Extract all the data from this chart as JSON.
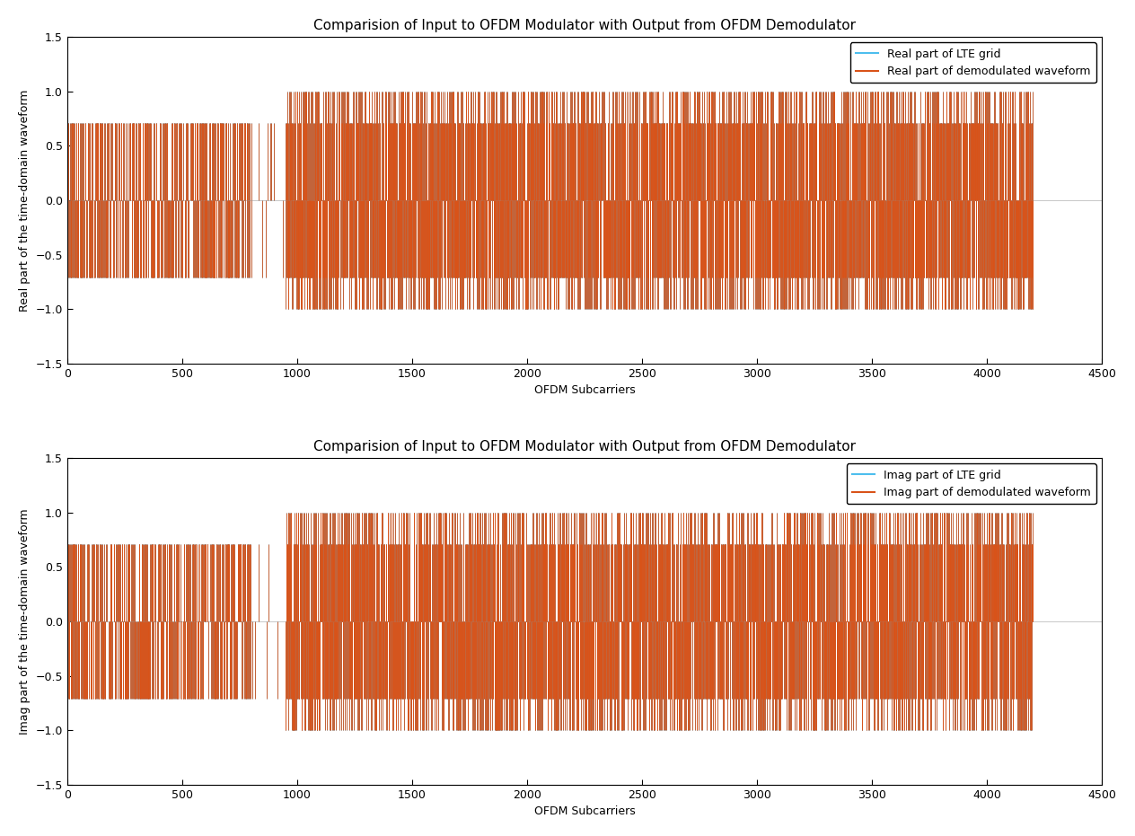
{
  "title": "Comparision of Input to OFDM Modulator with Output from OFDM Demodulator",
  "xlabel": "OFDM Subcarriers",
  "ylabel_top": "Real part of the time-domain waveform",
  "ylabel_bottom": "Imag part of the time-domain waveform",
  "xlim": [
    0,
    4500
  ],
  "ylim": [
    -1.5,
    1.5
  ],
  "yticks": [
    -1.5,
    -1.0,
    -0.5,
    0.0,
    0.5,
    1.0,
    1.5
  ],
  "xticks": [
    0,
    500,
    1000,
    1500,
    2000,
    2500,
    3000,
    3500,
    4000,
    4500
  ],
  "legend_labels_top": [
    "Real part of LTE grid",
    "Real part of demodulated waveform"
  ],
  "legend_labels_bottom": [
    "Imag part of LTE grid",
    "Imag part of demodulated waveform"
  ],
  "lte_color": "#4DBEEE",
  "demod_color": "#D95319",
  "background_color": "#ffffff",
  "n_points": 4200,
  "seed_real": 42,
  "seed_imag": 77
}
